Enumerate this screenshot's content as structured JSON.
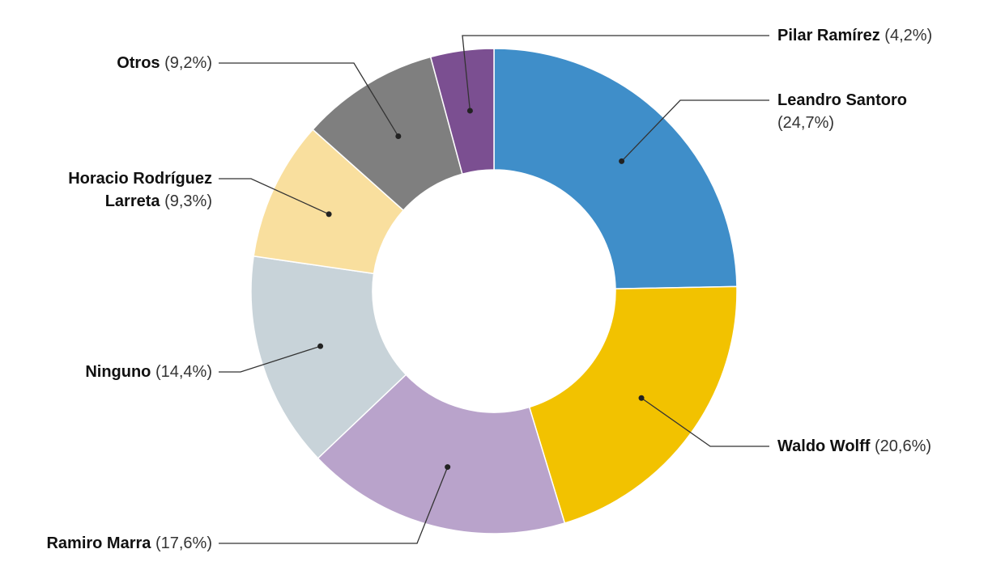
{
  "chart_data": {
    "type": "donut",
    "categories": [
      "Leandro Santoro",
      "Waldo Wolff",
      "Ramiro Marra",
      "Ninguno",
      "Horacio Rodríguez Larreta",
      "Otros",
      "Pilar Ramírez"
    ],
    "values": [
      24.7,
      20.6,
      17.6,
      14.4,
      9.3,
      9.2,
      4.2
    ],
    "value_labels": [
      "(24,7%)",
      "(20,6%)",
      "(17,6%)",
      "(14,4%)",
      "(9,3%)",
      "(9,2%)",
      "(4,2%)"
    ],
    "colors": [
      "#3f8ec9",
      "#f2c200",
      "#b9a3cb",
      "#c8d3d9",
      "#f9df9e",
      "#7f7f7f",
      "#7b4f91"
    ]
  }
}
